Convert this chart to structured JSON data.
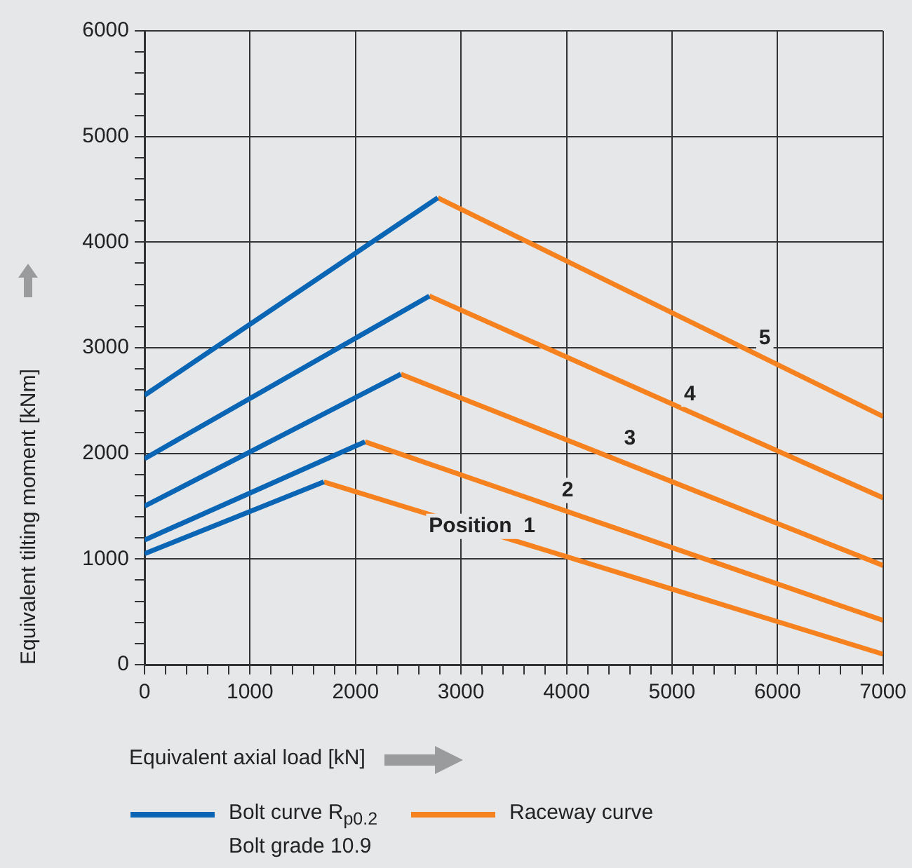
{
  "chart_data": {
    "type": "line",
    "xlabel": "Equivalent axial load [kN]",
    "ylabel": "Equivalent tilting moment [kNm]",
    "xlim": [
      0,
      7000
    ],
    "ylim": [
      0,
      6000
    ],
    "xticks": [
      0,
      {
        "value": 200,
        "label": null
      },
      {
        "value": 400,
        "label": null
      },
      {
        "value": 600,
        "label": null
      },
      {
        "value": 800,
        "label": null
      },
      1000,
      {
        "value": 1200,
        "label": null
      },
      {
        "value": 1400,
        "label": null
      },
      {
        "value": 1600,
        "label": null
      },
      {
        "value": 1800,
        "label": null
      },
      2000,
      {
        "value": 2200,
        "label": null
      },
      {
        "value": 2400,
        "label": null
      },
      {
        "value": 2600,
        "label": null
      },
      {
        "value": 2800,
        "label": null
      },
      3000,
      {
        "value": 3200,
        "label": null
      },
      {
        "value": 3400,
        "label": null
      },
      {
        "value": 3600,
        "label": null
      },
      {
        "value": 3800,
        "label": null
      },
      4000,
      {
        "value": 4200,
        "label": null
      },
      {
        "value": 4400,
        "label": null
      },
      {
        "value": 4600,
        "label": null
      },
      {
        "value": 4800,
        "label": null
      },
      5000,
      {
        "value": 5200,
        "label": null
      },
      {
        "value": 5400,
        "label": null
      },
      {
        "value": 5600,
        "label": null
      },
      {
        "value": 5800,
        "label": null
      },
      6000,
      {
        "value": 6200,
        "label": null
      },
      {
        "value": 6400,
        "label": null
      },
      {
        "value": 6600,
        "label": null
      },
      {
        "value": 6800,
        "label": null
      },
      7000
    ],
    "yticks": [
      0,
      {
        "value": 200,
        "label": null
      },
      {
        "value": 400,
        "label": null
      },
      {
        "value": 600,
        "label": null
      },
      {
        "value": 800,
        "label": null
      },
      1000,
      {
        "value": 1200,
        "label": null
      },
      {
        "value": 1400,
        "label": null
      },
      {
        "value": 1600,
        "label": null
      },
      {
        "value": 1800,
        "label": null
      },
      2000,
      {
        "value": 2200,
        "label": null
      },
      {
        "value": 2400,
        "label": null
      },
      {
        "value": 2600,
        "label": null
      },
      {
        "value": 2800,
        "label": null
      },
      3000,
      {
        "value": 3200,
        "label": null
      },
      {
        "value": 3400,
        "label": null
      },
      {
        "value": 3600,
        "label": null
      },
      {
        "value": 3800,
        "label": null
      },
      4000,
      {
        "value": 4200,
        "label": null
      },
      {
        "value": 4400,
        "label": null
      },
      {
        "value": 4600,
        "label": null
      },
      {
        "value": 4800,
        "label": null
      },
      5000,
      {
        "value": 5200,
        "label": null
      },
      {
        "value": 5400,
        "label": null
      },
      {
        "value": 5600,
        "label": null
      },
      {
        "value": 5800,
        "label": null
      },
      6000
    ],
    "grid": true,
    "legend": "bottom",
    "marker": "none",
    "line_style": "solid",
    "series": [
      {
        "name": "Bolt curve R$_{p0.2}$ Bolt grade 10.9",
        "color": "#0a66b5",
        "x": [
          0,
          1700
        ],
        "values": [
          1050,
          1730
        ]
      },
      {
        "color": "#0a66b5",
        "x": [
          0,
          2090
        ],
        "values": [
          1180,
          2110
        ]
      },
      {
        "color": "#0a66b5",
        "x": [
          0,
          2430
        ],
        "values": [
          1500,
          2750
        ]
      },
      {
        "color": "#0a66b5",
        "x": [
          0,
          2700
        ],
        "values": [
          1950,
          3490
        ]
      },
      {
        "color": "#0a66b5",
        "x": [
          0,
          2780
        ],
        "values": [
          2550,
          4420
        ]
      },
      {
        "name": "Raceway curve",
        "color": "#f6821f",
        "x": [
          1700,
          7000
        ],
        "values": [
          1730,
          100
        ]
      },
      {
        "color": "#f6821f",
        "x": [
          2090,
          7000
        ],
        "values": [
          2110,
          420
        ]
      },
      {
        "color": "#f6821f",
        "x": [
          2430,
          7000
        ],
        "values": [
          2750,
          940
        ]
      },
      {
        "color": "#f6821f",
        "x": [
          2700,
          7000
        ],
        "values": [
          3490,
          1580
        ]
      },
      {
        "color": "#f6821f",
        "x": [
          2780,
          7000
        ],
        "values": [
          4420,
          2350
        ]
      }
    ],
    "annotations": [
      {
        "text": "Position  1",
        "x": 3200,
        "y": 1310
      },
      {
        "text": "2",
        "x": 4010,
        "y": 1650
      },
      {
        "text": "3",
        "x": 4600,
        "y": 2140
      },
      {
        "text": "4",
        "x": 5170,
        "y": 2560
      },
      {
        "text": "5",
        "x": 5880,
        "y": 3090
      }
    ]
  }
}
